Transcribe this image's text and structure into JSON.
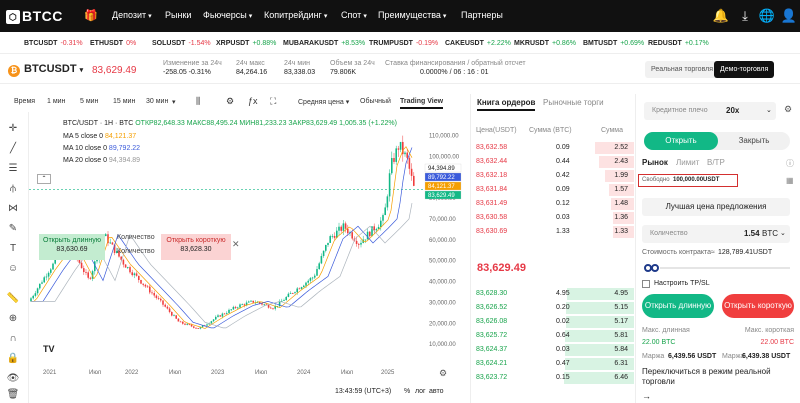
{
  "nav": {
    "logo": "BTCC",
    "items": [
      "Депозит",
      "Рынки",
      "Фьючерсы",
      "Копитрейдинг",
      "Спот",
      "Преимущества",
      "Партнеры"
    ],
    "icons": [
      "gift-icon",
      "bell-icon",
      "download-icon",
      "globe-icon",
      "user-icon"
    ]
  },
  "ticker": [
    {
      "sym": "BTCUSDT",
      "chg": "-0.31%",
      "dir": "dn"
    },
    {
      "sym": "ETHUSDT",
      "chg": "0%",
      "dir": "dn"
    },
    {
      "sym": "SOLUSDT",
      "chg": "-1.54%",
      "dir": "dn"
    },
    {
      "sym": "XRPUSDT",
      "chg": "+0.88%",
      "dir": "up"
    },
    {
      "sym": "MUBARAKUSDT",
      "chg": "+8.53%",
      "dir": "up"
    },
    {
      "sym": "TRUMPUSDT",
      "chg": "-0.19%",
      "dir": "dn"
    },
    {
      "sym": "CAKEUSDT",
      "chg": "+2.22%",
      "dir": "up"
    },
    {
      "sym": "MKRUSDT",
      "chg": "+0.86%",
      "dir": "up"
    },
    {
      "sym": "BMTUSDT",
      "chg": "+0.69%",
      "dir": "up"
    },
    {
      "sym": "REDUSDT",
      "chg": "+0.17%",
      "dir": "up"
    }
  ],
  "market": {
    "symbol": "BTCUSDT",
    "price": "83,629.49",
    "stats": [
      {
        "label": "Изменение за 24ч",
        "value": "-258.05   -0.31%"
      },
      {
        "label": "24ч макс",
        "value": "84,264.16"
      },
      {
        "label": "24ч мин",
        "value": "83,338.03"
      },
      {
        "label": "Объем за 24ч",
        "value": "79.806K"
      },
      {
        "label": "Ставка финансирования / обратный отсчет",
        "value": "0.0000% / 06 : 16 : 01"
      }
    ],
    "mode_real": "Реальная торговля",
    "mode_demo": "Демо-торговля"
  },
  "toolbar": {
    "time": "Время",
    "t1": "1 мин",
    "t2": "5 мин",
    "t3": "15 мин",
    "t4": "30 мин",
    "price_type": "Средняя цена",
    "normal": "Обычный",
    "tv": "Trading View"
  },
  "chart": {
    "title": "BTC/USDT · 1H · BTC",
    "ohlc": "ОТКР82,648.33 МАКС88,495.24 МИН81,233.23 ЗАКР83,629.49 1,005.35 (+1.22%)",
    "ma5": "MA 5 close 0",
    "ma5v": "84,121.37",
    "ma10": "MA 10 close 0",
    "ma10v": "89,792.22",
    "ma20": "MA 20 close 0",
    "ma20v": "94,394.89",
    "axis": [
      "110,000.00",
      "100,000.00",
      "90,000.00",
      "80,000.00",
      "70,000.00",
      "60,000.00",
      "50,000.00",
      "40,000.00",
      "30,000.00",
      "20,000.00",
      "10,000.00"
    ],
    "badges": [
      {
        "v": "94,394.89",
        "c": "#ffffff",
        "t": "#222"
      },
      {
        "v": "89,792.22",
        "c": "#3b5bdb",
        "t": "#fff"
      },
      {
        "v": "84,121.37",
        "c": "#f59f00",
        "t": "#fff"
      },
      {
        "v": "83,629.49",
        "c": "#12b886",
        "t": "#fff"
      }
    ],
    "xlabels": [
      "2021",
      "Июл",
      "2022",
      "Июл",
      "2023",
      "Июл",
      "2024",
      "Июл",
      "2025"
    ],
    "time": "13:43:59 (UTC+3)",
    "pct": "%",
    "log": "лог",
    "auto": "авто",
    "open_long": "Открыть длинную",
    "open_long_price": "83,630.69",
    "qty": "Количество",
    "open_short": "Открыть короткую",
    "open_short_price": "83,628.30"
  },
  "orderbook": {
    "tab1": "Книга ордеров",
    "tab2": "Рыночные торги",
    "h1": "Цена(USDT)",
    "h2": "Сумма (BTC)",
    "h3": "Сумма",
    "asks": [
      {
        "p": "83,632.58",
        "s": "0.09",
        "t": "2.52",
        "f": 0.55
      },
      {
        "p": "83,632.44",
        "s": "0.44",
        "t": "2.43",
        "f": 0.5
      },
      {
        "p": "83,632.18",
        "s": "0.42",
        "t": "1.99",
        "f": 0.42
      },
      {
        "p": "83,631.84",
        "s": "0.09",
        "t": "1.57",
        "f": 0.35
      },
      {
        "p": "83,631.49",
        "s": "0.12",
        "t": "1.48",
        "f": 0.33
      },
      {
        "p": "83,630.58",
        "s": "0.03",
        "t": "1.36",
        "f": 0.3
      },
      {
        "p": "83,630.69",
        "s": "1.33",
        "t": "1.33",
        "f": 0.3
      }
    ],
    "mid": "83,629.49",
    "bids": [
      {
        "p": "83,628.30",
        "s": "4.95",
        "t": "4.95",
        "f": 0.95
      },
      {
        "p": "83,626.52",
        "s": "0.20",
        "t": "5.15",
        "f": 0.97
      },
      {
        "p": "83,626.08",
        "s": "0.02",
        "t": "5.17",
        "f": 0.97
      },
      {
        "p": "83,625.72",
        "s": "0.64",
        "t": "5.81",
        "f": 0.98
      },
      {
        "p": "83,624.37",
        "s": "0.03",
        "t": "5.84",
        "f": 0.98
      },
      {
        "p": "83,624.21",
        "s": "0.47",
        "t": "6.31",
        "f": 0.99
      },
      {
        "p": "83,623.72",
        "s": "0.15",
        "t": "6.46",
        "f": 1.0
      }
    ]
  },
  "trade": {
    "leverage_label": "Кредитное плечо",
    "leverage": "20x",
    "open": "Открыть",
    "close": "Закрыть",
    "market": "Рынок",
    "limit": "Лимит",
    "tp": "B/TP",
    "free_label": "Свободно",
    "free_value": "100,000.00USDT",
    "best_price": "Лучшая цена предложения",
    "qty_label": "Количество",
    "qty_value": "1.54",
    "qty_unit": "BTC",
    "contract_label": "Стоимость контракта≈",
    "contract_value": "128,789.41USDT",
    "tpsl": "Настроить TP/SL",
    "long": "Открыть длинную",
    "short": "Открыть короткую",
    "max_long_label": "Макс. длинная",
    "max_long": "22.00 BTC",
    "max_short_label": "Макс. короткая",
    "max_short": "22.00 BTC",
    "margin_label": "Маржа",
    "margin_long": "6,439.56 USDT",
    "margin_short": "6,439.38 USDT",
    "switch_real": "Переключиться в режим реальной торговли"
  }
}
